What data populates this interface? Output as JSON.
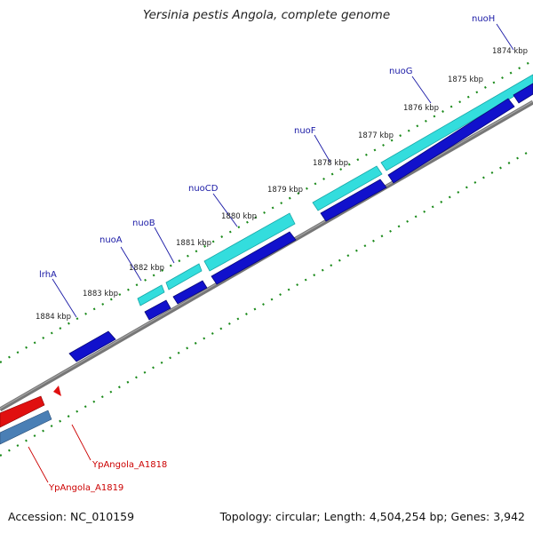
{
  "title": "Yersinia pestis Angola, complete genome",
  "footer": {
    "accession": "Accession: NC_010159",
    "stats": "Topology: circular; Length: 4,504,254 bp; Genes: 3,942"
  },
  "ticks": [
    "1874 kbp",
    "1875 kbp",
    "1876 kbp",
    "1877 kbp",
    "1878 kbp",
    "1879 kbp",
    "1880 kbp",
    "1881 kbp",
    "1882 kbp",
    "1883 kbp",
    "1884 kbp"
  ],
  "genes_blue": [
    "nuoH",
    "nuoG",
    "nuoF",
    "nuoCD",
    "nuoB",
    "nuoA",
    "lrhA"
  ],
  "genes_red": [
    "YpAngola_A1818",
    "YpAngola_A1819"
  ],
  "colors": {
    "backbone": "#777777",
    "cyan": "#33dddd",
    "blue": "#1111cc",
    "red": "#e01010",
    "steel": "#4a7fb5",
    "dots": "#1a8a1a"
  }
}
